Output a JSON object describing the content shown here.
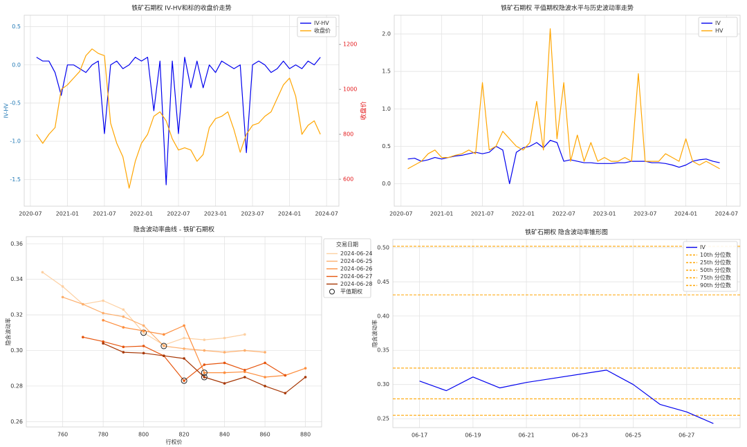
{
  "chart_data": [
    {
      "type": "line",
      "title": "铁矿石期权 IV-HV和标的收盘价走势",
      "ylabel": "IV-HV",
      "y2label": "收盘价",
      "ylabel_color": "#1f77b4",
      "y2label_color": "#e41a1c",
      "x": [
        "2020-08",
        "2020-09",
        "2020-10",
        "2020-11",
        "2020-12",
        "2021-01",
        "2021-02",
        "2021-03",
        "2021-04",
        "2021-05",
        "2021-06",
        "2021-07",
        "2021-08",
        "2021-09",
        "2021-10",
        "2021-11",
        "2021-12",
        "2022-01",
        "2022-02",
        "2022-03",
        "2022-04",
        "2022-05",
        "2022-06",
        "2022-07",
        "2022-08",
        "2022-09",
        "2022-10",
        "2022-11",
        "2022-12",
        "2023-01",
        "2023-02",
        "2023-03",
        "2023-04",
        "2023-05",
        "2023-06",
        "2023-07",
        "2023-08",
        "2023-09",
        "2023-10",
        "2023-11",
        "2023-12",
        "2024-01",
        "2024-02",
        "2024-03",
        "2024-04",
        "2024-05",
        "2024-06"
      ],
      "series": [
        {
          "name": "IV-HV",
          "color": "#0000ee",
          "values": [
            0.1,
            0.05,
            0.05,
            -0.1,
            -0.4,
            0.0,
            0.0,
            -0.05,
            -0.1,
            0.0,
            0.05,
            -0.9,
            0.0,
            0.05,
            -0.05,
            0.0,
            0.1,
            0.05,
            0.1,
            -0.6,
            0.05,
            -1.57,
            0.05,
            -0.9,
            0.1,
            -0.3,
            0.05,
            -0.3,
            0.0,
            -0.1,
            0.05,
            0.0,
            -0.05,
            0.0,
            -1.15,
            0.0,
            0.05,
            0.0,
            -0.1,
            -0.05,
            0.05,
            -0.05,
            0.0,
            -0.05,
            0.05,
            0.0,
            0.1
          ]
        },
        {
          "name": "收盘价",
          "color": "#ffa500",
          "axis": "y2",
          "values": [
            800,
            760,
            800,
            830,
            1000,
            1020,
            1050,
            1080,
            1150,
            1180,
            1160,
            1150,
            850,
            760,
            700,
            560,
            680,
            760,
            800,
            880,
            900,
            860,
            780,
            730,
            740,
            730,
            680,
            710,
            830,
            870,
            880,
            900,
            820,
            720,
            800,
            840,
            850,
            880,
            900,
            960,
            1020,
            1050,
            970,
            800,
            840,
            860,
            800
          ]
        }
      ],
      "xlim": [
        "2020-06",
        "2024-09"
      ],
      "xticks": [
        "2020-07",
        "2021-01",
        "2021-07",
        "2022-01",
        "2022-07",
        "2023-01",
        "2023-07",
        "2024-01",
        "2024-07"
      ],
      "ylim": [
        -1.85,
        0.65
      ],
      "yticks": [
        0.5,
        {
          "value": 0,
          "label": "0.0"
        },
        -0.5,
        {
          "value": -1,
          "label": "-1.0"
        },
        -1.5
      ],
      "y2lim": [
        480,
        1330
      ],
      "y2ticks": [
        600,
        800,
        1000,
        1200
      ],
      "grid": true,
      "legend": "upper right"
    },
    {
      "type": "line",
      "title": "铁矿石期权 平值期权隐波水平与历史波动率走势",
      "x": [
        "2020-08",
        "2020-09",
        "2020-10",
        "2020-11",
        "2020-12",
        "2021-01",
        "2021-02",
        "2021-03",
        "2021-04",
        "2021-05",
        "2021-06",
        "2021-07",
        "2021-08",
        "2021-09",
        "2021-10",
        "2021-11",
        "2021-12",
        "2022-01",
        "2022-02",
        "2022-03",
        "2022-04",
        "2022-05",
        "2022-06",
        "2022-07",
        "2022-08",
        "2022-09",
        "2022-10",
        "2022-11",
        "2022-12",
        "2023-01",
        "2023-02",
        "2023-03",
        "2023-04",
        "2023-05",
        "2023-06",
        "2023-07",
        "2023-08",
        "2023-09",
        "2023-10",
        "2023-11",
        "2023-12",
        "2024-01",
        "2024-02",
        "2024-03",
        "2024-04",
        "2024-05",
        "2024-06"
      ],
      "series": [
        {
          "name": "IV",
          "color": "#0000ee",
          "values": [
            0.33,
            0.34,
            0.3,
            0.32,
            0.35,
            0.33,
            0.35,
            0.37,
            0.38,
            0.4,
            0.42,
            0.4,
            0.42,
            0.5,
            0.45,
            0.0,
            0.42,
            0.48,
            0.5,
            0.55,
            0.48,
            0.58,
            0.55,
            0.3,
            0.32,
            0.3,
            0.28,
            0.28,
            0.27,
            0.27,
            0.27,
            0.28,
            0.28,
            0.3,
            0.3,
            0.3,
            0.28,
            0.28,
            0.27,
            0.25,
            0.22,
            0.25,
            0.3,
            0.32,
            0.33,
            0.3,
            0.28
          ]
        },
        {
          "name": "HV",
          "color": "#ffa500",
          "values": [
            0.2,
            0.25,
            0.3,
            0.4,
            0.45,
            0.35,
            0.35,
            0.38,
            0.4,
            0.45,
            0.4,
            1.35,
            0.45,
            0.5,
            0.7,
            0.6,
            0.5,
            0.45,
            0.55,
            1.1,
            0.45,
            2.07,
            0.6,
            1.35,
            0.3,
            0.65,
            0.3,
            0.55,
            0.3,
            0.35,
            0.3,
            0.3,
            0.35,
            0.3,
            1.47,
            0.3,
            0.3,
            0.3,
            0.4,
            0.35,
            0.3,
            0.6,
            0.3,
            0.25,
            0.3,
            0.25,
            0.2
          ]
        }
      ],
      "xlim": [
        "2020-06",
        "2024-09"
      ],
      "xticks": [
        "2020-07",
        "2021-01",
        "2021-07",
        "2022-01",
        "2022-07",
        "2023-01",
        "2023-07",
        "2024-01",
        "2024-07"
      ],
      "ylim": [
        -0.3,
        2.25
      ],
      "yticks": [
        {
          "value": 0,
          "label": "0.0"
        },
        0.5,
        {
          "value": 1,
          "label": "1.0"
        },
        1.5,
        {
          "value": 2,
          "label": "2.0"
        }
      ],
      "grid": true,
      "legend": "upper right"
    },
    {
      "type": "line",
      "title": "隐含波动率曲线 - 铁矿石期权",
      "xlabel": "行权价",
      "ylabel": "隐含波动率",
      "markers": true,
      "legend_title": "交易日期",
      "atm_label": "平值期权",
      "series": [
        {
          "name": "2024-06-24",
          "color": "#fdd0a2",
          "x": [
            750,
            760,
            770,
            780,
            790,
            800,
            810,
            820,
            830,
            840,
            850
          ],
          "values": [
            0.344,
            0.336,
            0.326,
            0.328,
            0.323,
            0.31,
            0.303,
            0.307,
            0.306,
            0.307,
            0.309
          ],
          "atm_x": 800
        },
        {
          "name": "2024-06-25",
          "color": "#fdae6b",
          "x": [
            760,
            770,
            780,
            790,
            800,
            810,
            820,
            830,
            840,
            850,
            860
          ],
          "values": [
            0.33,
            0.326,
            0.321,
            0.319,
            0.314,
            0.3025,
            0.301,
            0.3,
            0.299,
            0.3,
            0.299
          ],
          "atm_x": 810
        },
        {
          "name": "2024-06-26",
          "color": "#fd8d3c",
          "x": [
            780,
            790,
            800,
            810,
            820,
            830,
            840,
            850,
            860,
            870,
            880
          ],
          "values": [
            0.317,
            0.313,
            0.311,
            0.309,
            0.314,
            0.2875,
            0.2875,
            0.288,
            0.285,
            0.286,
            0.29
          ],
          "atm_x": 830
        },
        {
          "name": "2024-06-27",
          "color": "#e6550d",
          "x": [
            770,
            780,
            790,
            800,
            810,
            820,
            830,
            840,
            850,
            860,
            870
          ],
          "values": [
            0.3075,
            0.305,
            0.302,
            0.3025,
            0.297,
            0.283,
            0.292,
            0.293,
            0.289,
            0.293,
            0.286
          ],
          "atm_x": 820
        },
        {
          "name": "2024-06-28",
          "color": "#a63603",
          "x": [
            780,
            790,
            800,
            810,
            820,
            830,
            840,
            850,
            860,
            870,
            880
          ],
          "values": [
            0.304,
            0.299,
            0.2985,
            0.297,
            0.2955,
            0.285,
            0.2815,
            0.285,
            0.28,
            0.276,
            0.285
          ],
          "atm_x": 830
        }
      ],
      "xlim": [
        742,
        888
      ],
      "xticks": [
        760,
        780,
        800,
        820,
        840,
        860,
        880
      ],
      "ylim": [
        0.257,
        0.364
      ],
      "yticks": [
        0.26,
        0.28,
        {
          "value": 0.3,
          "label": "0.30"
        },
        0.32,
        0.34,
        0.36
      ],
      "grid": true,
      "legend": "outside right"
    },
    {
      "type": "line",
      "title": "铁矿石期权 隐含波动率锥形图",
      "ylabel": "隐含波动率",
      "x": [
        "06-17",
        "06-18",
        "06-19",
        "06-20",
        "06-21",
        "06-24",
        "06-25",
        "06-26",
        "06-27",
        "06-28"
      ],
      "series": [
        {
          "name": "IV",
          "color": "#0000ee",
          "values": [
            0.305,
            0.291,
            0.311,
            0.295,
            0.303,
            0.321,
            0.3,
            0.271,
            0.26,
            0.243
          ]
        }
      ],
      "hlines": [
        {
          "name": "10th 分位数",
          "value": 0.255,
          "color": "#ffa500"
        },
        {
          "name": "25th 分位数",
          "value": 0.279,
          "color": "#ffa500"
        },
        {
          "name": "50th 分位数",
          "value": 0.324,
          "color": "#ffa500"
        },
        {
          "name": "75th 分位数",
          "value": 0.431,
          "color": "#ffa500"
        },
        {
          "name": "90th 分位数",
          "value": 0.502,
          "color": "#ffa500"
        }
      ],
      "xlim": [
        "06-16",
        "06-29"
      ],
      "xticks": [
        "06-17",
        "06-19",
        "06-21",
        "06-23",
        "06-25",
        "06-27"
      ],
      "ylim": [
        0.237,
        0.512
      ],
      "yticks": [
        0.25,
        {
          "value": 0.3,
          "label": "0.30"
        },
        0.35,
        {
          "value": 0.4,
          "label": "0.40"
        },
        0.45,
        {
          "value": 0.5,
          "label": "0.50"
        }
      ],
      "grid": true,
      "legend": "upper right"
    }
  ]
}
